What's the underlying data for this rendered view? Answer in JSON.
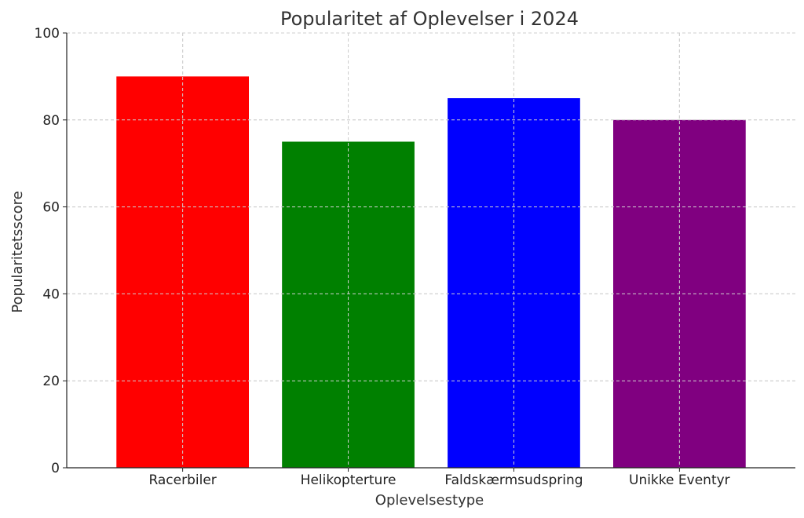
{
  "chart_data": {
    "type": "bar",
    "title": "Popularitet af Oplevelser i 2024",
    "xlabel": "Oplevelsestype",
    "ylabel": "Popularitetsscore",
    "categories": [
      "Racerbiler",
      "Helikopterture",
      "Faldskærmsudspring",
      "Unikke Eventyr"
    ],
    "values": [
      90,
      75,
      85,
      80
    ],
    "colors": [
      "#ff0000",
      "#008000",
      "#0000ff",
      "#800080"
    ],
    "ylim": [
      0,
      100
    ],
    "yticks": [
      0,
      20,
      40,
      60,
      80,
      100
    ],
    "grid": true
  }
}
